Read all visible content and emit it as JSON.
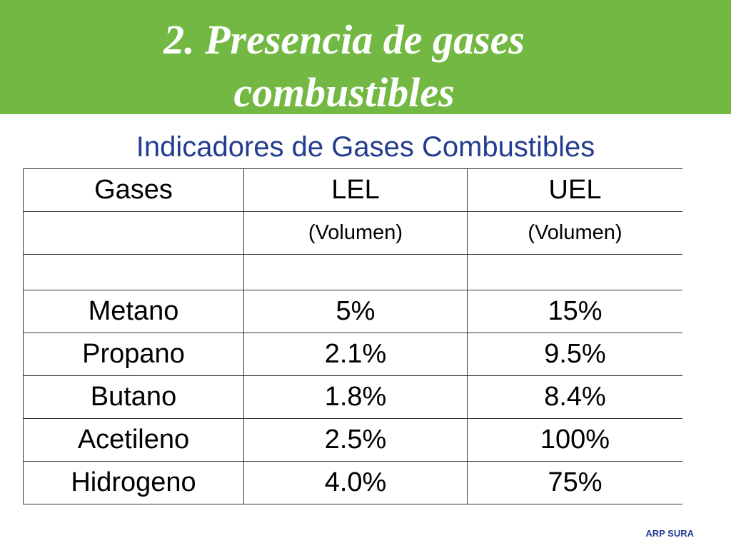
{
  "header": {
    "title_line1": "2. Presencia de gases",
    "title_line2": "combustibles"
  },
  "subtitle": "Indicadores de Gases Combustibles",
  "table": {
    "columns": [
      "Gases",
      "LEL",
      "UEL"
    ],
    "units": [
      "(Volumen)",
      "(Volumen)"
    ],
    "rows": [
      [
        "Metano",
        "5%",
        "15%"
      ],
      [
        "Propano",
        "2.1%",
        "9.5%"
      ],
      [
        "Butano",
        "1.8%",
        "8.4%"
      ],
      [
        "Acetileno",
        "2.5%",
        "100%"
      ],
      [
        "Hidrogeno",
        "4.0%",
        "75%"
      ]
    ]
  },
  "footer": "ARP SURA"
}
